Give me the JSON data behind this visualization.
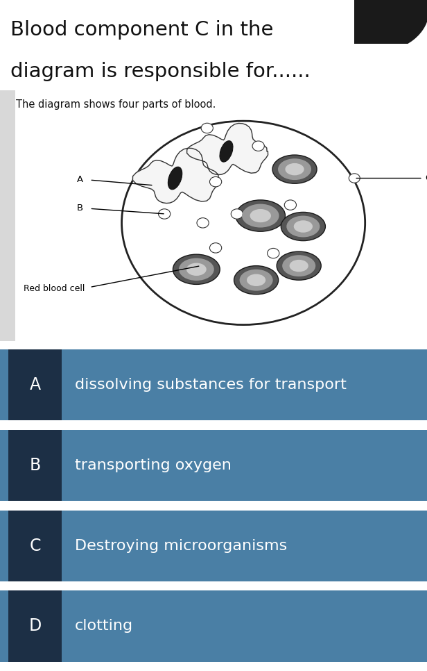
{
  "title_line1": "Blood component C in the",
  "title_line2": "diagram is responsible for......",
  "subtitle": "The diagram shows four parts of blood.",
  "bg_color": "#ffffff",
  "diagram_bg": "#ebebeb",
  "answer_bg": "#4a7fa5",
  "answer_dark": "#1c2f45",
  "answer_text_color": "#ffffff",
  "options": [
    {
      "letter": "A",
      "text": "dissolving substances for transport"
    },
    {
      "letter": "B",
      "text": "transporting oxygen"
    },
    {
      "letter": "C",
      "text": "Destroying microorganisms"
    },
    {
      "letter": "D",
      "text": "clotting"
    }
  ],
  "title_fontsize": 21,
  "subtitle_fontsize": 10.5,
  "option_letter_fontsize": 17,
  "option_text_fontsize": 16
}
